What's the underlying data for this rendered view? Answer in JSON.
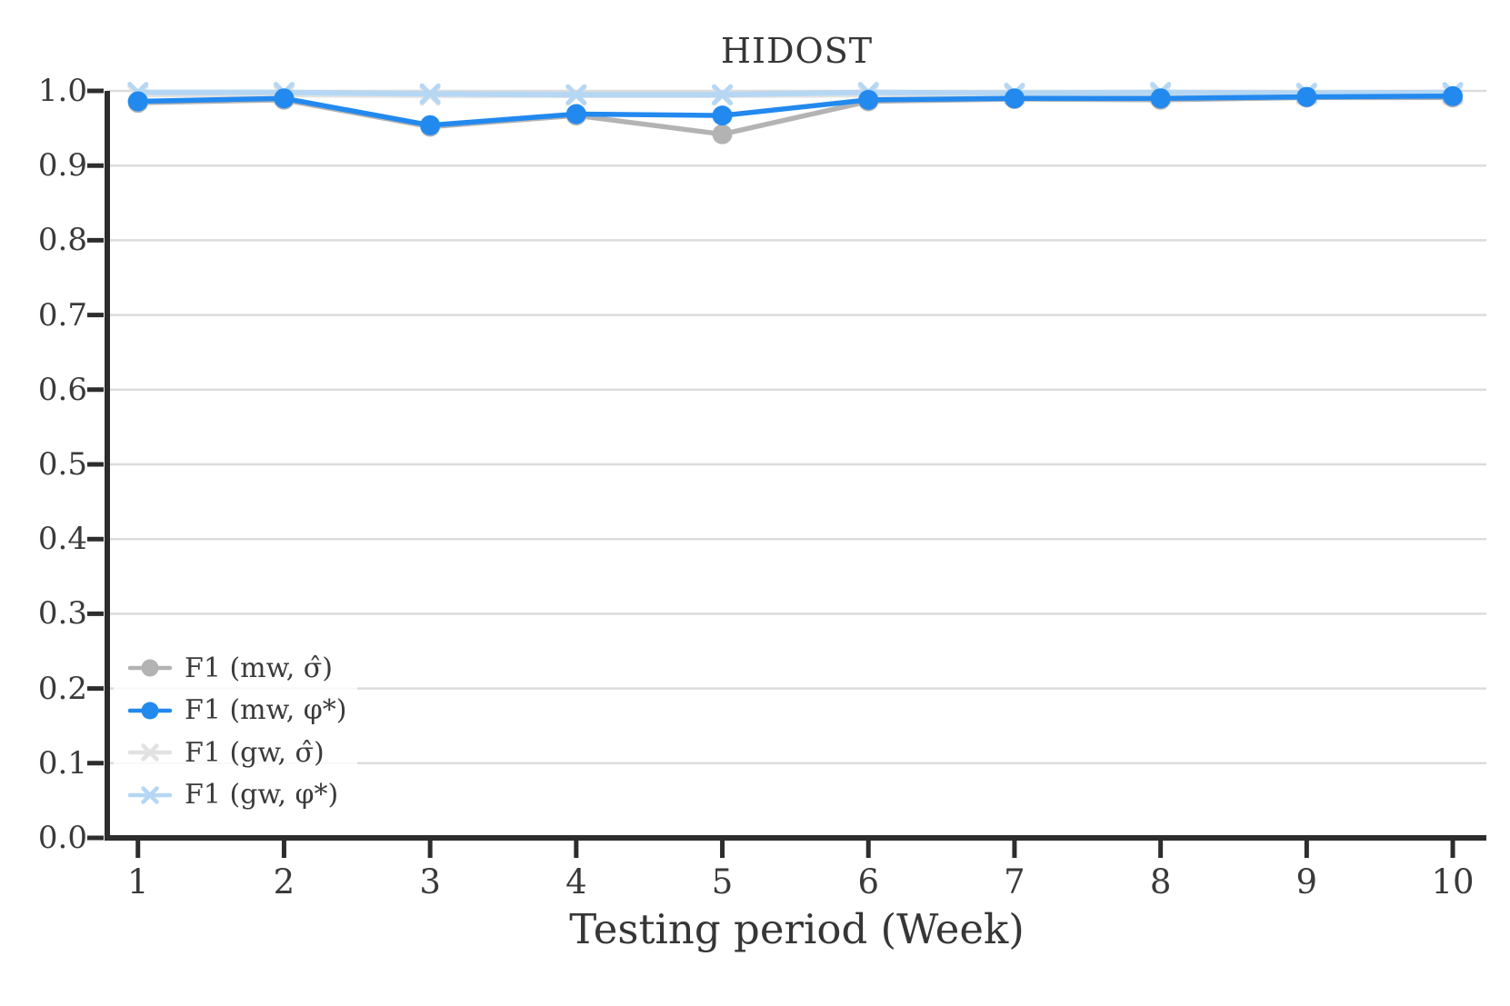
{
  "accent_colors": {
    "mw_sigma_gray": "#b3b3b3",
    "mw_phi_blue": "#2289ef",
    "gw_sigma_lightgray": "#e2e2e2",
    "gw_phi_lightblue": "#b5d7f4",
    "gridline": "#dcdcdc",
    "spine": "#2d2d2d",
    "text": "#3a3a3a"
  },
  "chart_data": {
    "type": "line",
    "title": "HIDOST",
    "xlabel": "Testing period (Week)",
    "ylabel": "",
    "x": [
      1,
      2,
      3,
      4,
      5,
      6,
      7,
      8,
      9,
      10
    ],
    "xticks": [
      1,
      2,
      3,
      4,
      5,
      6,
      7,
      8,
      9,
      10
    ],
    "yticks": [
      0.0,
      0.1,
      0.2,
      0.3,
      0.4,
      0.5,
      0.6,
      0.7,
      0.8,
      0.9,
      1.0
    ],
    "xlim": [
      0.79,
      10.23
    ],
    "ylim": [
      0.0,
      1.0
    ],
    "grid": "horizontal",
    "legend_position": "lower-left",
    "series": [
      {
        "name": "F1 (mw, σ̂)",
        "color": "#b3b3b3",
        "marker": "circle",
        "zorder": 3,
        "values": [
          0.984,
          0.988,
          0.952,
          0.967,
          0.942,
          0.986,
          0.989,
          0.988,
          0.991,
          0.991
        ]
      },
      {
        "name": "F1 (mw, φ*)",
        "color": "#2289ef",
        "marker": "circle",
        "zorder": 4,
        "values": [
          0.986,
          0.99,
          0.954,
          0.969,
          0.967,
          0.988,
          0.99,
          0.99,
          0.992,
          0.993
        ]
      },
      {
        "name": "F1 (gw, σ̂)",
        "color": "#e2e2e2",
        "marker": "x",
        "zorder": 1,
        "values": [
          0.995,
          0.995,
          0.994,
          0.994,
          0.994,
          0.995,
          0.995,
          0.995,
          0.995,
          0.995
        ]
      },
      {
        "name": "F1 (gw, φ*)",
        "color": "#b5d7f4",
        "marker": "x",
        "zorder": 2,
        "values": [
          0.998,
          0.998,
          0.996,
          0.995,
          0.995,
          0.998,
          0.997,
          0.998,
          0.997,
          0.998
        ]
      }
    ]
  }
}
